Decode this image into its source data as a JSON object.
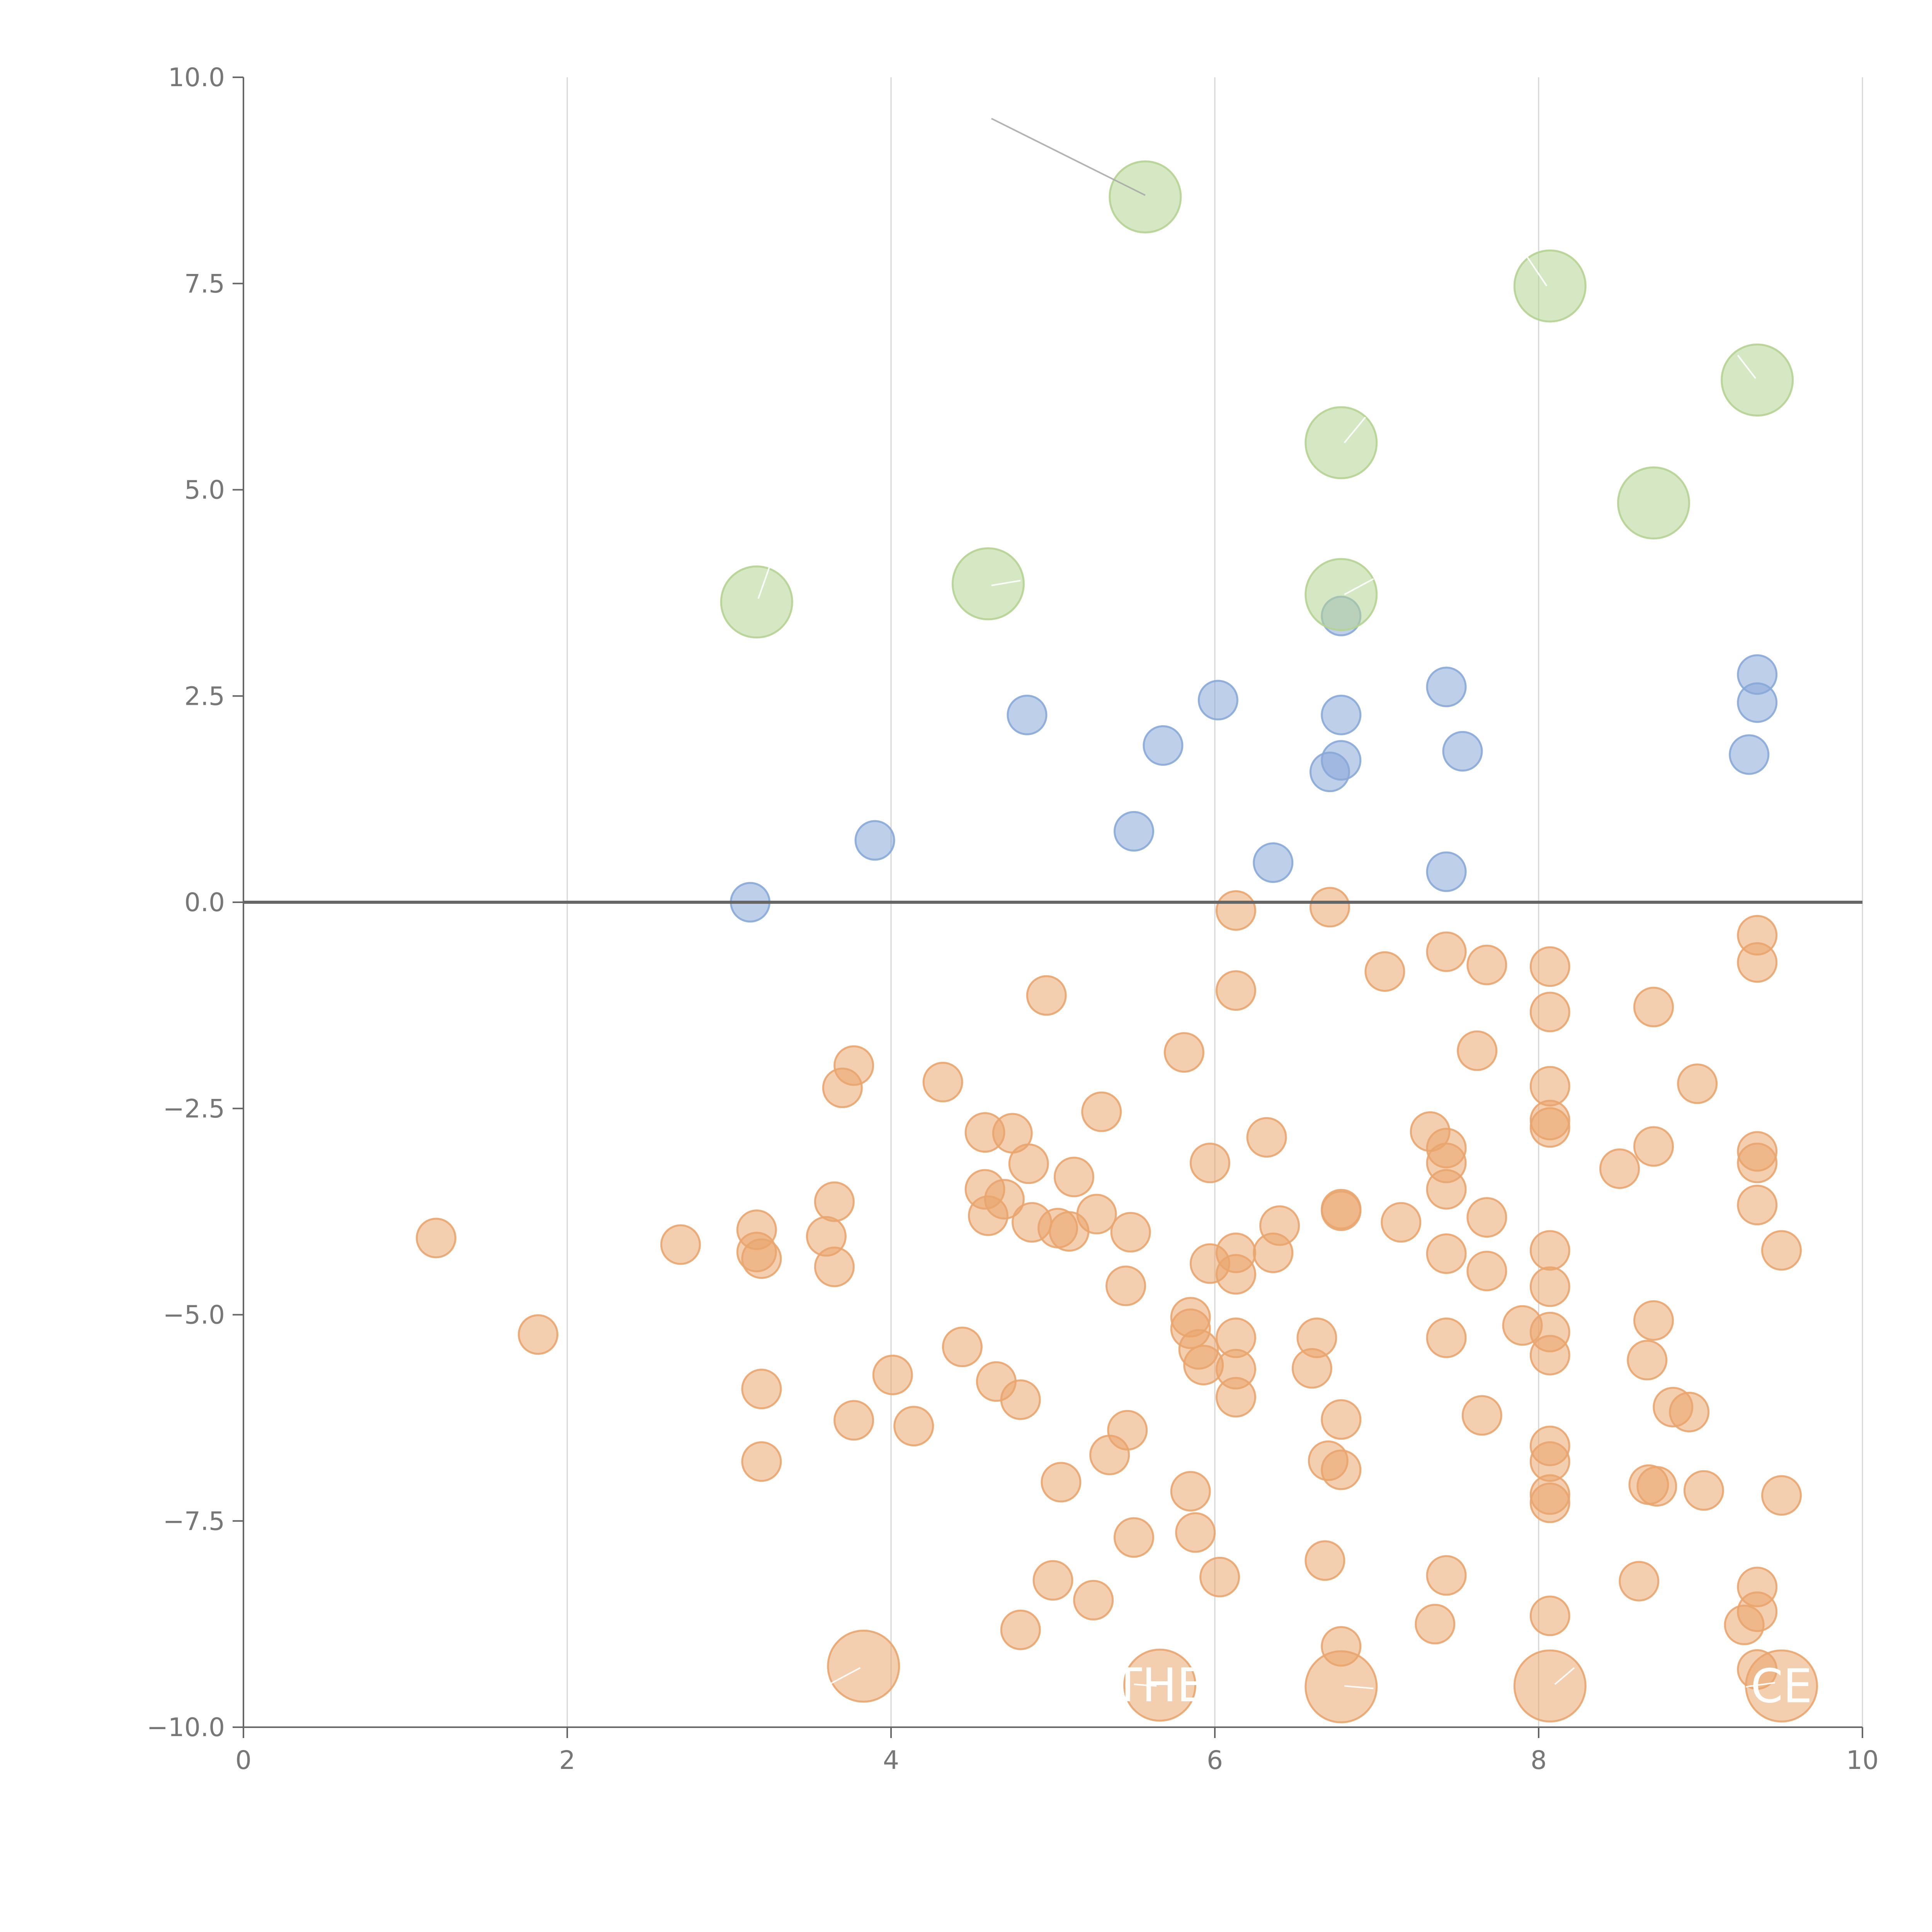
{
  "chart_data": {
    "type": "scatter",
    "title": "",
    "xlabel": "",
    "ylabel": "",
    "xlim": [
      0,
      10
    ],
    "ylim": [
      -10,
      10
    ],
    "grid": "vertical",
    "reference_line_y": 0,
    "x_ticks": [
      0,
      2,
      4,
      6,
      8,
      10
    ],
    "x_tick_labels": [
      "0",
      "2",
      "4",
      "6",
      "8",
      "10"
    ],
    "y_ticks": [
      10,
      7.5,
      5,
      2.5,
      0,
      -2.5,
      -5,
      -7.5,
      -10
    ],
    "y_tick_labels": [
      "10.0",
      "7.5",
      "5.0",
      "2.5",
      "0.0",
      "−2.5",
      "−5.0",
      "−7.5",
      "−10.0"
    ],
    "colors": {
      "green": "#b5d392",
      "blue": "#88a8d8",
      "orange": "#e9a56e",
      "axis": "#666666",
      "grid": "#d6d6d6",
      "tick_text": "#777777",
      "leader": "#aaaaaa"
    },
    "series": [
      {
        "name": "green",
        "color": "#b5d392",
        "size": "large",
        "points": [
          [
            5.57,
            8.55
          ],
          [
            8.07,
            7.47
          ],
          [
            9.35,
            6.33
          ],
          [
            6.78,
            5.57
          ],
          [
            8.71,
            4.84
          ],
          [
            3.17,
            3.64
          ],
          [
            4.6,
            3.86
          ],
          [
            6.78,
            3.73
          ]
        ]
      },
      {
        "name": "blue",
        "color": "#88a8d8",
        "size": "small",
        "points": [
          [
            3.13,
            0.0
          ],
          [
            3.9,
            0.75
          ],
          [
            4.84,
            2.27
          ],
          [
            5.5,
            0.86
          ],
          [
            5.68,
            1.9
          ],
          [
            6.02,
            2.45
          ],
          [
            6.36,
            0.48
          ],
          [
            6.71,
            1.58
          ],
          [
            6.78,
            1.72
          ],
          [
            6.78,
            2.27
          ],
          [
            6.78,
            3.47
          ],
          [
            7.43,
            2.61
          ],
          [
            7.43,
            0.37
          ],
          [
            7.53,
            1.83
          ],
          [
            9.3,
            1.79
          ],
          [
            9.35,
            2.42
          ],
          [
            9.35,
            2.76
          ]
        ]
      },
      {
        "name": "orange",
        "color": "#e9a56e",
        "size": "small",
        "points": [
          [
            1.19,
            -4.07
          ],
          [
            1.82,
            -5.24
          ],
          [
            2.7,
            -4.15
          ],
          [
            3.17,
            -3.97
          ],
          [
            3.17,
            -4.24
          ],
          [
            3.2,
            -4.32
          ],
          [
            3.2,
            -5.9
          ],
          [
            3.2,
            -6.78
          ],
          [
            3.6,
            -4.05
          ],
          [
            3.65,
            -3.63
          ],
          [
            3.65,
            -4.42
          ],
          [
            3.7,
            -2.25
          ],
          [
            3.77,
            -1.98
          ],
          [
            3.77,
            -6.28
          ],
          [
            4.01,
            -5.73
          ],
          [
            4.14,
            -6.35
          ],
          [
            4.32,
            -2.18
          ],
          [
            4.44,
            -5.39
          ],
          [
            4.58,
            -2.79
          ],
          [
            4.58,
            -3.48
          ],
          [
            4.6,
            -3.8
          ],
          [
            4.65,
            -5.81
          ],
          [
            4.7,
            -3.6
          ],
          [
            4.75,
            -2.8
          ],
          [
            4.8,
            -6.03
          ],
          [
            4.8,
            -8.82
          ],
          [
            4.85,
            -3.17
          ],
          [
            4.87,
            -3.88
          ],
          [
            4.96,
            -1.13
          ],
          [
            5.0,
            -8.22
          ],
          [
            5.03,
            -3.95
          ],
          [
            5.05,
            -7.03
          ],
          [
            5.1,
            -3.99
          ],
          [
            5.13,
            -3.33
          ],
          [
            5.25,
            -8.46
          ],
          [
            5.27,
            -3.78
          ],
          [
            5.3,
            -2.54
          ],
          [
            5.35,
            -6.7
          ],
          [
            5.45,
            -4.65
          ],
          [
            5.46,
            -6.4
          ],
          [
            5.48,
            -4.0
          ],
          [
            5.5,
            -7.7
          ],
          [
            5.81,
            -1.82
          ],
          [
            5.85,
            -5.03
          ],
          [
            5.85,
            -5.17
          ],
          [
            5.85,
            -7.14
          ],
          [
            5.88,
            -7.64
          ],
          [
            5.9,
            -5.42
          ],
          [
            5.93,
            -5.61
          ],
          [
            5.97,
            -3.16
          ],
          [
            5.97,
            -4.38
          ],
          [
            6.03,
            -8.18
          ],
          [
            6.13,
            -0.1
          ],
          [
            6.13,
            -1.07
          ],
          [
            6.13,
            -4.25
          ],
          [
            6.13,
            -4.51
          ],
          [
            6.13,
            -5.28
          ],
          [
            6.13,
            -5.66
          ],
          [
            6.13,
            -6.0
          ],
          [
            6.32,
            -2.85
          ],
          [
            6.36,
            -4.25
          ],
          [
            6.4,
            -3.92
          ],
          [
            6.6,
            -5.65
          ],
          [
            6.63,
            -5.28
          ],
          [
            6.68,
            -7.98
          ],
          [
            6.7,
            -6.77
          ],
          [
            6.71,
            -0.06
          ],
          [
            6.78,
            -3.72
          ],
          [
            6.78,
            -3.74
          ],
          [
            6.78,
            -6.27
          ],
          [
            6.78,
            -6.88
          ],
          [
            6.78,
            -9.02
          ],
          [
            7.05,
            -0.84
          ],
          [
            7.15,
            -3.88
          ],
          [
            7.33,
            -2.78
          ],
          [
            7.36,
            -8.75
          ],
          [
            7.43,
            -0.6
          ],
          [
            7.43,
            -2.98
          ],
          [
            7.43,
            -3.16
          ],
          [
            7.43,
            -3.48
          ],
          [
            7.43,
            -4.26
          ],
          [
            7.43,
            -5.28
          ],
          [
            7.43,
            -8.16
          ],
          [
            7.62,
            -1.8
          ],
          [
            7.65,
            -6.22
          ],
          [
            7.68,
            -0.76
          ],
          [
            7.68,
            -3.82
          ],
          [
            7.68,
            -4.47
          ],
          [
            7.9,
            -5.13
          ],
          [
            8.07,
            -0.78
          ],
          [
            8.07,
            -1.33
          ],
          [
            8.07,
            -2.23
          ],
          [
            8.07,
            -2.64
          ],
          [
            8.07,
            -2.73
          ],
          [
            8.07,
            -4.22
          ],
          [
            8.07,
            -4.66
          ],
          [
            8.07,
            -5.21
          ],
          [
            8.07,
            -5.49
          ],
          [
            8.07,
            -6.59
          ],
          [
            8.07,
            -6.78
          ],
          [
            8.07,
            -7.18
          ],
          [
            8.07,
            -7.28
          ],
          [
            8.07,
            -8.65
          ],
          [
            8.5,
            -3.23
          ],
          [
            8.62,
            -8.23
          ],
          [
            8.67,
            -5.55
          ],
          [
            8.68,
            -7.06
          ],
          [
            8.71,
            -1.27
          ],
          [
            8.71,
            -2.96
          ],
          [
            8.71,
            -5.07
          ],
          [
            8.73,
            -7.08
          ],
          [
            8.83,
            -6.12
          ],
          [
            8.93,
            -6.18
          ],
          [
            8.98,
            -2.2
          ],
          [
            9.02,
            -7.13
          ],
          [
            9.27,
            -8.76
          ],
          [
            9.35,
            -0.4
          ],
          [
            9.35,
            -0.73
          ],
          [
            9.35,
            -3.02
          ],
          [
            9.35,
            -3.16
          ],
          [
            9.35,
            -3.67
          ],
          [
            9.35,
            -8.3
          ],
          [
            9.35,
            -8.6
          ],
          [
            9.35,
            -9.3
          ],
          [
            9.5,
            -4.22
          ],
          [
            9.5,
            -7.19
          ]
        ]
      },
      {
        "name": "orange-large",
        "color": "#e9a56e",
        "size": "large",
        "points": [
          [
            3.83,
            -9.26
          ],
          [
            5.66,
            -9.49
          ],
          [
            6.78,
            -9.51
          ],
          [
            8.07,
            -9.5
          ],
          [
            9.5,
            -9.5
          ]
        ]
      }
    ],
    "annotations": [
      {
        "text": "THE",
        "x": 5.66,
        "y": -9.49,
        "color": "#ffffff"
      },
      {
        "text": "CE",
        "x": 9.5,
        "y": -9.5,
        "color": "#ffffff"
      }
    ],
    "leader_lines": [
      {
        "from": [
          4.62,
          9.5
        ],
        "to": [
          5.57,
          8.57
        ],
        "color": "#aaaaaa"
      },
      {
        "from": [
          3.25,
          4.07
        ],
        "to": [
          3.18,
          3.68
        ],
        "color": "#ffffff"
      },
      {
        "from": [
          4.8,
          3.9
        ],
        "to": [
          4.62,
          3.84
        ],
        "color": "#ffffff"
      },
      {
        "from": [
          6.98,
          3.92
        ],
        "to": [
          6.8,
          3.73
        ],
        "color": "#ffffff"
      },
      {
        "from": [
          6.93,
          5.88
        ],
        "to": [
          6.8,
          5.57
        ],
        "color": "#ffffff"
      },
      {
        "from": [
          7.93,
          7.82
        ],
        "to": [
          8.05,
          7.47
        ],
        "color": "#ffffff"
      },
      {
        "from": [
          9.23,
          6.63
        ],
        "to": [
          9.34,
          6.35
        ],
        "color": "#ffffff"
      },
      {
        "from": [
          3.58,
          -9.52
        ],
        "to": [
          3.81,
          -9.28
        ],
        "color": "#ffffff"
      },
      {
        "from": [
          5.5,
          -9.48
        ],
        "to": [
          5.64,
          -9.5
        ],
        "color": "#ffffff"
      },
      {
        "from": [
          6.98,
          -9.53
        ],
        "to": [
          6.8,
          -9.5
        ],
        "color": "#ffffff"
      },
      {
        "from": [
          8.1,
          -9.48
        ],
        "to": [
          8.22,
          -9.28
        ],
        "color": "#ffffff"
      },
      {
        "from": [
          9.28,
          -9.51
        ],
        "to": [
          9.46,
          -9.46
        ],
        "color": "#ffffff"
      }
    ]
  }
}
